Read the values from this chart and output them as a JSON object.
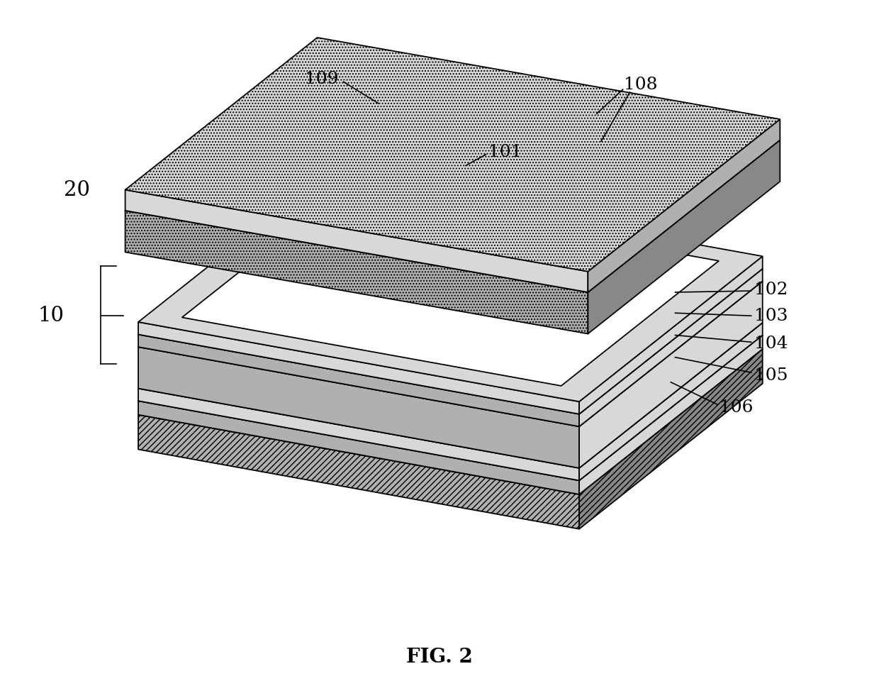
{
  "fig_width": 12.4,
  "fig_height": 9.84,
  "bg_color": "#ffffff",
  "line_color": "#000000",
  "fig_label": "FIG. 2",
  "gray_light": "#d8d8d8",
  "gray_med": "#b0b0b0",
  "gray_dark": "#888888",
  "white": "#ffffff",
  "label_fontsize": 18,
  "caption_fontsize": 20
}
